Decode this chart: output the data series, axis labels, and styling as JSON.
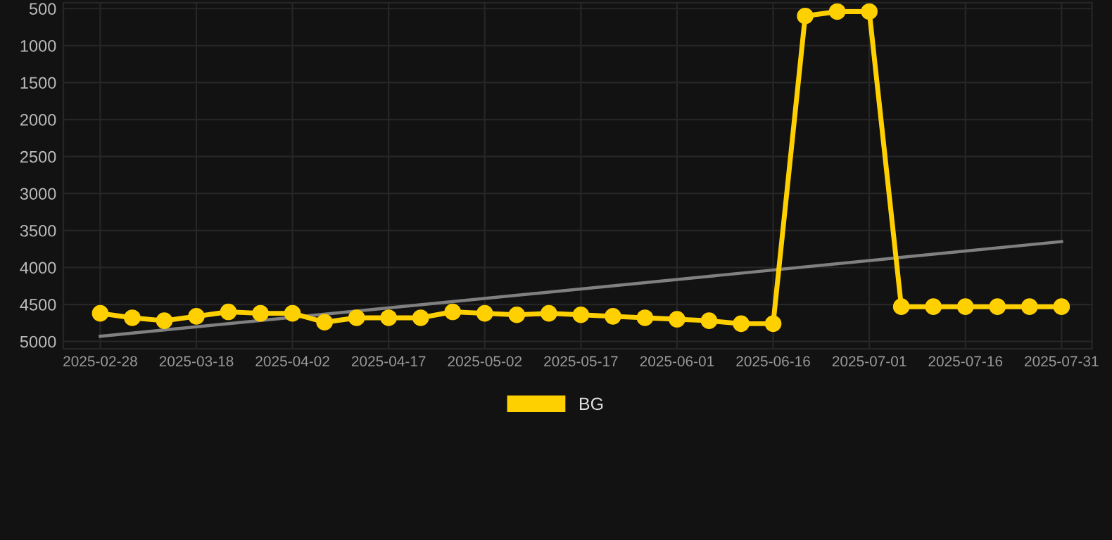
{
  "chart_data": {
    "type": "line",
    "categories": [
      "2025-02-28",
      null,
      null,
      "2025-03-18",
      null,
      null,
      "2025-04-02",
      null,
      null,
      "2025-04-17",
      null,
      null,
      "2025-05-02",
      null,
      null,
      "2025-05-17",
      null,
      null,
      "2025-06-01",
      null,
      null,
      "2025-06-16",
      null,
      null,
      "2025-07-01",
      null,
      null,
      "2025-07-16",
      null,
      null,
      "2025-07-31"
    ],
    "series": [
      {
        "name": "BG",
        "color": "#ffd000",
        "marker": "circle",
        "values": [
          4620,
          4680,
          4720,
          4660,
          4600,
          4620,
          4620,
          4740,
          4680,
          4680,
          4680,
          4600,
          4620,
          4640,
          4620,
          4640,
          4660,
          4680,
          4700,
          4720,
          4760,
          4760,
          600,
          540,
          540,
          4530,
          4530,
          4530,
          4530,
          4530,
          4530
        ]
      },
      {
        "type": "line",
        "color": "#808080",
        "marker": "none",
        "values": [
          4930,
          null,
          null,
          null,
          null,
          null,
          null,
          null,
          null,
          null,
          null,
          null,
          null,
          null,
          null,
          null,
          null,
          null,
          null,
          null,
          null,
          null,
          null,
          null,
          null,
          null,
          null,
          null,
          null,
          null,
          3650
        ]
      }
    ],
    "ylim": [
      5100,
      420
    ],
    "yticks": [
      500,
      1000,
      1500,
      2000,
      2500,
      3000,
      3500,
      4000,
      4500,
      5000
    ],
    "grid": true,
    "legend": "bottom"
  }
}
